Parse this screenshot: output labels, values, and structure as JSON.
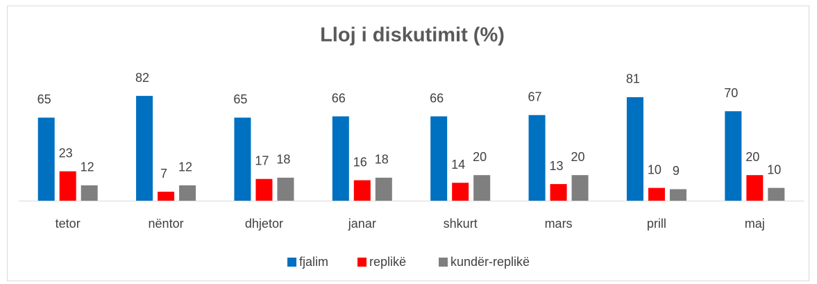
{
  "chart_data": {
    "type": "bar",
    "title": "Lloj i diskutimit (%)",
    "categories": [
      "tetor",
      "nëntor",
      "dhjetor",
      "janar",
      "shkurt",
      "mars",
      "prill",
      "maj"
    ],
    "series": [
      {
        "name": "fjalim",
        "color": "#0070c0",
        "values": [
          65,
          82,
          65,
          66,
          66,
          67,
          81,
          70
        ]
      },
      {
        "name": "replikë",
        "color": "#ff0000",
        "values": [
          23,
          7,
          17,
          16,
          14,
          13,
          10,
          20
        ]
      },
      {
        "name": "kundër-replikë",
        "color": "#7f7f7f",
        "values": [
          12,
          12,
          18,
          18,
          20,
          20,
          9,
          10
        ]
      }
    ],
    "legend": "bottom"
  }
}
